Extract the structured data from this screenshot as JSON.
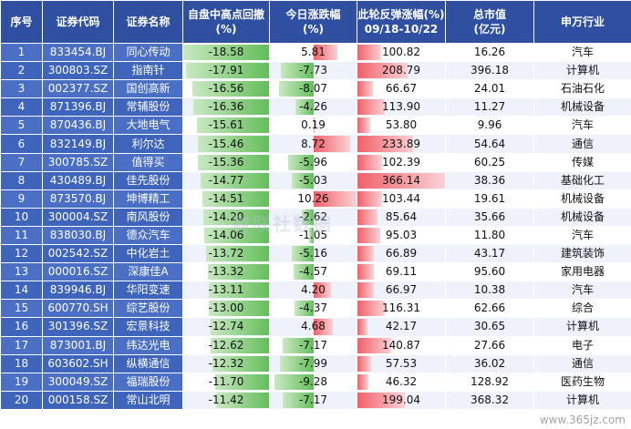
{
  "chart_data": {
    "type": "table",
    "columns": [
      "序号",
      "证券代码",
      "证券名称",
      "自盘中高点回撤\n(%)",
      "今日涨跌幅\n(%)",
      "此轮反弹涨幅(%)\n09/18-10/22",
      "总市值\n(亿元)",
      "申万行业"
    ],
    "rows": [
      [
        "1",
        "833454.BJ",
        "同心传动",
        -18.58,
        5.81,
        100.82,
        "16.26",
        "汽车"
      ],
      [
        "2",
        "300803.SZ",
        "指南针",
        -17.91,
        -7.73,
        208.79,
        "396.18",
        "计算机"
      ],
      [
        "3",
        "002377.SZ",
        "国创高新",
        -16.56,
        -8.07,
        66.67,
        "24.01",
        "石油石化"
      ],
      [
        "4",
        "871396.BJ",
        "常辅股份",
        -16.36,
        -4.26,
        113.9,
        "11.27",
        "机械设备"
      ],
      [
        "5",
        "870436.BJ",
        "大地电气",
        -15.61,
        0.19,
        53.8,
        "9.96",
        "汽车"
      ],
      [
        "6",
        "832149.BJ",
        "利尔达",
        -15.46,
        8.72,
        233.89,
        "54.64",
        "通信"
      ],
      [
        "7",
        "300785.SZ",
        "值得买",
        -15.36,
        -5.96,
        102.39,
        "60.25",
        "传媒"
      ],
      [
        "8",
        "430489.BJ",
        "佳先股份",
        -14.77,
        -5.03,
        366.14,
        "38.36",
        "基础化工"
      ],
      [
        "9",
        "873570.BJ",
        "坤博精工",
        -14.51,
        10.26,
        103.44,
        "19.61",
        "机械设备"
      ],
      [
        "10",
        "300004.SZ",
        "南风股份",
        -14.2,
        -2.62,
        85.64,
        "35.66",
        "机械设备"
      ],
      [
        "11",
        "838030.BJ",
        "德众汽车",
        -14.06,
        -1.05,
        95.03,
        "11.80",
        "汽车"
      ],
      [
        "12",
        "002542.SZ",
        "中化岩土",
        -13.72,
        -5.16,
        66.89,
        "43.17",
        "建筑装饰"
      ],
      [
        "13",
        "000016.SZ",
        "深康佳A",
        -13.32,
        -4.57,
        69.11,
        "95.60",
        "家用电器"
      ],
      [
        "14",
        "839946.BJ",
        "华阳变速",
        -13.11,
        4.2,
        66.97,
        "10.38",
        "汽车"
      ],
      [
        "15",
        "600770.SH",
        "综艺股份",
        -13.0,
        -4.37,
        116.31,
        "62.66",
        "综合"
      ],
      [
        "16",
        "301396.SZ",
        "宏景科技",
        -12.74,
        4.68,
        42.17,
        "30.65",
        "计算机"
      ],
      [
        "17",
        "873001.BJ",
        "纬达光电",
        -12.62,
        -7.17,
        140.87,
        "27.66",
        "电子"
      ],
      [
        "18",
        "603602.SH",
        "纵横通信",
        -12.32,
        -7.99,
        57.53,
        "36.02",
        "通信"
      ],
      [
        "19",
        "300049.SZ",
        "福瑞股份",
        -11.7,
        -9.28,
        46.32,
        "128.92",
        "医药生物"
      ],
      [
        "20",
        "000158.SZ",
        "常山北明",
        -11.42,
        -7.17,
        199.04,
        "368.32",
        "计算机"
      ]
    ],
    "ranges": {
      "drawdown_min": -18.58,
      "change_abs_max": 10.26,
      "rebound_max": 366.14
    }
  },
  "watermark": {
    "center": "财联社数据",
    "corner": "www.365jz.com"
  }
}
